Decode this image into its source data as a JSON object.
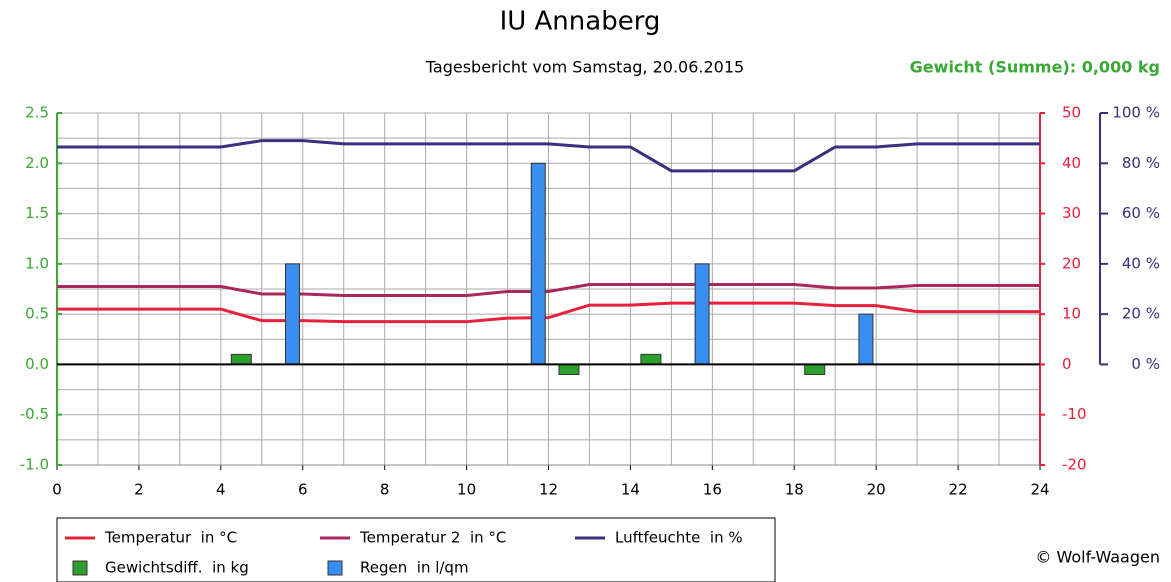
{
  "chart_data": {
    "type": "combo",
    "title": "IU Annaberg",
    "subtitle": "Tagesbericht vom Samstag, 20.06.2015",
    "summary": "Gewicht (Summe): 0,000 kg",
    "copyright": "© Wolf-Waagen",
    "x": [
      0,
      1,
      2,
      3,
      4,
      5,
      6,
      7,
      8,
      9,
      10,
      11,
      12,
      13,
      14,
      15,
      16,
      17,
      18,
      19,
      20,
      21,
      22,
      23,
      24
    ],
    "xlim": [
      0,
      24
    ],
    "xticks": [
      0,
      2,
      4,
      6,
      8,
      10,
      12,
      14,
      16,
      18,
      20,
      22,
      24
    ],
    "ylim": [
      -1,
      2.5
    ],
    "yticks": [
      {
        "value": 2.5,
        "label": "2.5"
      },
      {
        "value": 2,
        "label": "2.0"
      },
      {
        "value": 1.5,
        "label": "1.5"
      },
      {
        "value": 1,
        "label": "1.0"
      },
      {
        "value": 0.5,
        "label": "0.5"
      },
      {
        "value": 0,
        "label": "0.0"
      },
      {
        "value": -0.5,
        "label": "-0.5"
      },
      {
        "value": -1,
        "label": "-1.0"
      }
    ],
    "y2lim": [
      -20,
      50
    ],
    "y2ticks": [
      50,
      40,
      30,
      20,
      10,
      0,
      -10,
      -20
    ],
    "y3lim": [
      -40,
      100
    ],
    "y3ticks": [
      {
        "value": 100,
        "label": "100 %"
      },
      {
        "value": 80,
        "label": "80 %"
      },
      {
        "value": 60,
        "label": "60 %"
      },
      {
        "value": 40,
        "label": "40 %"
      },
      {
        "value": 20,
        "label": "20 %"
      },
      {
        "value": 0,
        "label": "0 %"
      }
    ],
    "grid": {
      "x_step": 1,
      "y_step": 0.25
    },
    "axis_colors": {
      "y": "#3aa835",
      "y2": "#e8203c",
      "y3": "#3a3080"
    },
    "series": [
      {
        "name": "Temperatur  in °C",
        "color": "#e8203c",
        "type": "line",
        "axis": "y2",
        "values": [
          11,
          11,
          11,
          11,
          11,
          8.7,
          8.7,
          8.5,
          8.5,
          8.5,
          8.5,
          9.2,
          9.3,
          11.8,
          11.8,
          12.2,
          12.2,
          12.2,
          12.2,
          11.7,
          11.7,
          10.5,
          10.5,
          10.5,
          10.5
        ]
      },
      {
        "name": "Temperatur 2  in °C",
        "color": "#a8285a",
        "type": "line",
        "axis": "y2",
        "values": [
          15.5,
          15.5,
          15.5,
          15.5,
          15.5,
          14,
          14,
          13.7,
          13.7,
          13.7,
          13.7,
          14.5,
          14.5,
          15.9,
          15.9,
          15.9,
          15.9,
          15.9,
          15.9,
          15.2,
          15.2,
          15.7,
          15.7,
          15.7,
          15.7
        ]
      },
      {
        "name": "Luftfeuchte  in %",
        "color": "#3a3080",
        "type": "line",
        "axis": "y3",
        "values": [
          86.5,
          86.5,
          86.5,
          86.5,
          86.5,
          89,
          89,
          87.7,
          87.7,
          87.7,
          87.7,
          87.7,
          87.7,
          86.5,
          86.5,
          77,
          77,
          77,
          77,
          86.5,
          86.5,
          87.7,
          87.7,
          87.7,
          87.7
        ]
      },
      {
        "name": "Gewichtsdiff.  in kg",
        "color": "#2ca02c",
        "type": "bar",
        "x": [
          4.5,
          12.5,
          14.5,
          18.5
        ],
        "values": [
          0.1,
          -0.1,
          0.1,
          -0.1
        ]
      },
      {
        "name": "Regen  in l/qm",
        "color": "#3a8ef0",
        "type": "bar",
        "x": [
          5.75,
          11.75,
          15.75,
          19.75
        ],
        "values": [
          1,
          2,
          1,
          0.5
        ]
      }
    ]
  }
}
